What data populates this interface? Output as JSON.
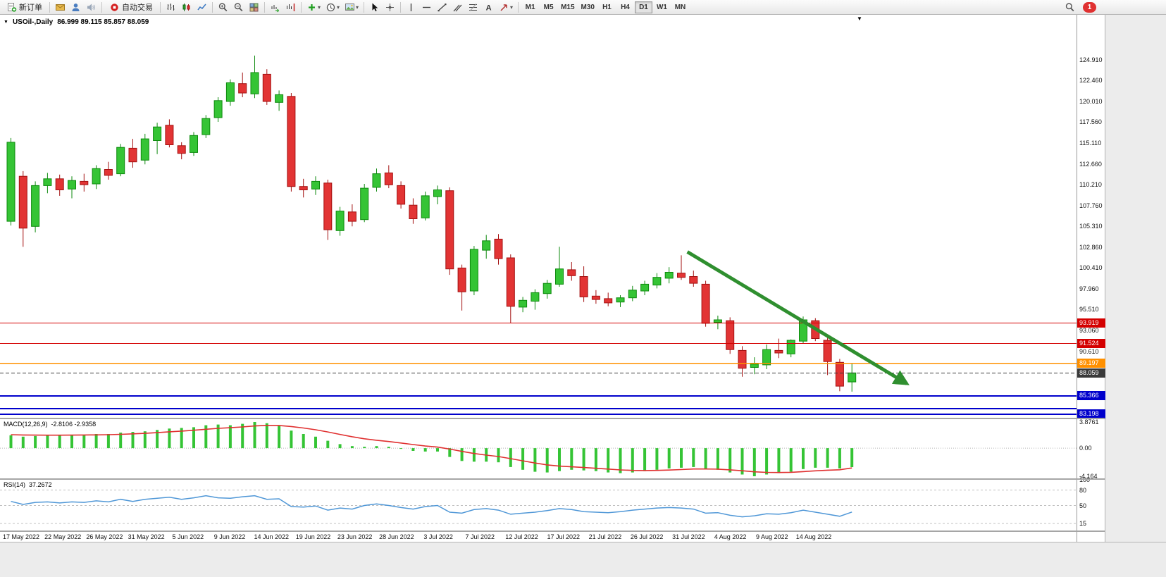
{
  "toolbar": {
    "new_order": "新订单",
    "auto_trading": "自动交易",
    "text_tool_glyph": "A",
    "timeframes": [
      "M1",
      "M5",
      "M15",
      "M30",
      "H1",
      "H4",
      "D1",
      "W1",
      "MN"
    ],
    "active_timeframe": "D1",
    "notification_badge": "1"
  },
  "chart_header": {
    "collapse_arrow": "▼",
    "scroll_marker": "▼",
    "symbol_period": "USOil-,Daily",
    "ohlc": "86.999 89.115 85.857 88.059"
  },
  "chart_data": {
    "type": "candlestick",
    "symbol": "USOil",
    "period": "Daily",
    "last_ohlc": {
      "open": 86.999,
      "high": 89.115,
      "low": 85.857,
      "close": 88.059
    },
    "price_axis_labels": [
      "124.910",
      "122.460",
      "120.010",
      "117.560",
      "115.110",
      "112.660",
      "110.210",
      "107.760",
      "105.310",
      "102.860",
      "100.410",
      "97.960",
      "95.510",
      "93.060",
      "90.610"
    ],
    "date_labels": [
      "17 May 2022",
      "22 May 2022",
      "26 May 2022",
      "31 May 2022",
      "5 Jun 2022",
      "9 Jun 2022",
      "14 Jun 2022",
      "19 Jun 2022",
      "23 Jun 2022",
      "28 Jun 2022",
      "3 Jul 2022",
      "7 Jul 2022",
      "12 Jul 2022",
      "17 Jul 2022",
      "21 Jul 2022",
      "26 Jul 2022",
      "31 Jul 2022",
      "4 Aug 2022",
      "9 Aug 2022",
      "14 Aug 2022"
    ],
    "candles": [
      [
        105.9,
        115.7,
        105.4,
        115.2
      ],
      [
        111.2,
        111.8,
        102.9,
        105.1
      ],
      [
        105.3,
        110.6,
        104.6,
        110.1
      ],
      [
        110.1,
        111.6,
        109.2,
        110.9
      ],
      [
        110.9,
        111.4,
        108.9,
        109.6
      ],
      [
        109.7,
        111.2,
        108.6,
        110.7
      ],
      [
        110.6,
        111.5,
        109.4,
        110.2
      ],
      [
        110.3,
        112.5,
        109.7,
        112.1
      ],
      [
        112.0,
        112.9,
        110.8,
        111.3
      ],
      [
        111.5,
        115.0,
        111.2,
        114.6
      ],
      [
        114.5,
        115.6,
        112.2,
        112.9
      ],
      [
        113.1,
        116.2,
        112.6,
        115.6
      ],
      [
        115.4,
        117.5,
        113.8,
        117.0
      ],
      [
        117.2,
        117.9,
        114.6,
        114.9
      ],
      [
        114.8,
        115.2,
        113.2,
        113.9
      ],
      [
        114.0,
        116.4,
        113.6,
        116.0
      ],
      [
        116.1,
        118.4,
        115.7,
        118.0
      ],
      [
        118.1,
        120.5,
        117.6,
        120.1
      ],
      [
        120.0,
        122.6,
        119.5,
        122.2
      ],
      [
        122.1,
        123.4,
        120.5,
        121.0
      ],
      [
        120.9,
        125.4,
        120.4,
        123.4
      ],
      [
        123.2,
        123.8,
        119.6,
        120.0
      ],
      [
        119.9,
        121.3,
        118.9,
        120.8
      ],
      [
        120.6,
        121.0,
        109.4,
        110.0
      ],
      [
        110.0,
        110.9,
        108.7,
        109.6
      ],
      [
        109.7,
        111.2,
        109.0,
        110.6
      ],
      [
        110.4,
        110.8,
        103.7,
        104.9
      ],
      [
        104.8,
        107.6,
        104.2,
        107.1
      ],
      [
        107.0,
        107.9,
        105.3,
        105.9
      ],
      [
        106.1,
        110.3,
        105.8,
        109.8
      ],
      [
        109.9,
        112.1,
        109.4,
        111.5
      ],
      [
        111.6,
        112.5,
        109.8,
        110.2
      ],
      [
        110.1,
        110.6,
        107.4,
        107.9
      ],
      [
        107.8,
        108.6,
        105.6,
        106.2
      ],
      [
        106.3,
        109.4,
        106.0,
        108.9
      ],
      [
        108.8,
        110.1,
        107.9,
        109.6
      ],
      [
        109.5,
        109.9,
        99.6,
        100.3
      ],
      [
        100.4,
        100.8,
        95.4,
        97.6
      ],
      [
        97.7,
        103.0,
        97.2,
        102.6
      ],
      [
        102.5,
        104.3,
        101.5,
        103.6
      ],
      [
        103.8,
        104.4,
        100.8,
        101.5
      ],
      [
        101.6,
        102.0,
        93.9,
        95.9
      ],
      [
        95.8,
        97.0,
        95.2,
        96.6
      ],
      [
        96.5,
        97.9,
        95.5,
        97.5
      ],
      [
        97.4,
        99.0,
        96.8,
        98.6
      ],
      [
        98.5,
        102.9,
        98.2,
        100.3
      ],
      [
        100.2,
        101.1,
        98.9,
        99.5
      ],
      [
        99.4,
        100.6,
        96.4,
        97.0
      ],
      [
        97.1,
        97.8,
        96.2,
        96.7
      ],
      [
        96.8,
        97.5,
        95.9,
        96.3
      ],
      [
        96.4,
        97.2,
        95.8,
        96.9
      ],
      [
        96.9,
        98.3,
        96.5,
        97.8
      ],
      [
        97.7,
        98.9,
        97.2,
        98.5
      ],
      [
        98.4,
        99.8,
        98.0,
        99.3
      ],
      [
        99.2,
        100.5,
        98.6,
        99.9
      ],
      [
        99.8,
        101.9,
        99.0,
        99.3
      ],
      [
        99.4,
        100.1,
        98.2,
        98.6
      ],
      [
        98.5,
        98.9,
        93.5,
        93.9
      ],
      [
        94.0,
        94.8,
        93.2,
        94.3
      ],
      [
        94.2,
        94.6,
        90.3,
        90.8
      ],
      [
        90.7,
        91.2,
        87.6,
        88.6
      ],
      [
        88.7,
        89.9,
        87.9,
        89.1
      ],
      [
        89.0,
        91.4,
        88.5,
        90.8
      ],
      [
        90.7,
        92.1,
        89.8,
        90.4
      ],
      [
        90.3,
        92.0,
        89.9,
        91.9
      ],
      [
        91.8,
        94.7,
        91.5,
        94.3
      ],
      [
        94.2,
        94.5,
        91.8,
        92.1
      ],
      [
        91.9,
        92.3,
        87.8,
        89.4
      ],
      [
        89.3,
        89.7,
        85.9,
        86.5
      ],
      [
        86.999,
        89.115,
        85.857,
        88.059
      ]
    ],
    "hlines": [
      {
        "price": 93.919,
        "label": "93.919",
        "color": "#d40000",
        "width": 1.2
      },
      {
        "price": 91.524,
        "label": "91.524",
        "color": "#d40000",
        "width": 1.2
      },
      {
        "price": 89.197,
        "label": "89.197",
        "color": "#ff9000",
        "width": 1.5
      },
      {
        "price": 88.059,
        "label": "88.059",
        "color": "#3a3a3a",
        "width": 1,
        "dashed": true
      },
      {
        "price": 85.366,
        "label": "85.366",
        "color": "#0000cc",
        "width": 2
      },
      {
        "price": 83.85,
        "label": "",
        "color": "#0000cc",
        "width": 2
      },
      {
        "price": 83.198,
        "label": "83.198",
        "color": "#0000cc",
        "width": 2
      }
    ],
    "trend_arrow": {
      "from_index": 56.5,
      "from_price": 102.3,
      "to_index": 74.5,
      "to_price": 86.8
    },
    "colors": {
      "bull": "#35c435",
      "bull_border": "#0e8a0e",
      "bear": "#e23434",
      "bear_border": "#a31111",
      "macd_hist": "#35c435",
      "macd_signal": "#e03030",
      "rsi_line": "#4f97d7",
      "arrow": "#2f8f2f",
      "level_red": "#d40000",
      "level_orange": "#ff9000",
      "level_blue": "#0000cc"
    },
    "macd": {
      "name": "MACD(12,26,9)",
      "values_text": "-2.8106 -2.9358",
      "axis_labels": [
        "3.8761",
        "0.00",
        "-4.164"
      ],
      "max": 3.8761,
      "min": -4.164,
      "histogram": [
        1.9,
        1.7,
        1.8,
        1.9,
        1.9,
        2.0,
        2.0,
        2.1,
        2.1,
        2.3,
        2.4,
        2.5,
        2.7,
        2.9,
        3.0,
        3.1,
        3.4,
        3.5,
        3.4,
        3.6,
        3.8761,
        3.7,
        3.3,
        2.6,
        2.1,
        1.7,
        1.1,
        0.6,
        0.3,
        0.2,
        0.3,
        0.2,
        -0.1,
        -0.4,
        -0.5,
        -0.5,
        -1.3,
        -1.9,
        -2.0,
        -2.0,
        -2.1,
        -2.8,
        -3.2,
        -3.5,
        -3.6,
        -3.4,
        -3.2,
        -3.3,
        -3.4,
        -3.6,
        -3.7,
        -3.6,
        -3.4,
        -3.2,
        -3.0,
        -2.9,
        -2.8,
        -3.1,
        -3.2,
        -3.6,
        -3.9,
        -4.164,
        -3.9,
        -3.7,
        -3.5,
        -3.1,
        -2.9,
        -2.9,
        -3.0,
        -2.8106
      ],
      "signal": [
        2.0,
        1.95,
        1.93,
        1.92,
        1.92,
        1.93,
        1.95,
        1.97,
        2.0,
        2.05,
        2.12,
        2.2,
        2.3,
        2.42,
        2.53,
        2.65,
        2.8,
        2.94,
        3.03,
        3.14,
        3.29,
        3.37,
        3.36,
        3.21,
        2.99,
        2.73,
        2.4,
        2.04,
        1.69,
        1.39,
        1.17,
        0.98,
        0.76,
        0.53,
        0.32,
        0.16,
        -0.13,
        -0.48,
        -0.79,
        -1.03,
        -1.24,
        -1.55,
        -1.88,
        -2.2,
        -2.48,
        -2.66,
        -2.77,
        -2.87,
        -2.98,
        -3.1,
        -3.22,
        -3.3,
        -3.32,
        -3.3,
        -3.24,
        -3.17,
        -3.09,
        -3.09,
        -3.11,
        -3.21,
        -3.35,
        -3.51,
        -3.59,
        -3.61,
        -3.58,
        -3.48,
        -3.36,
        -3.27,
        -3.2,
        -2.9358
      ]
    },
    "rsi": {
      "name": "RSI(14)",
      "value_text": "37.2672",
      "axis_labels": [
        {
          "v": 100,
          "t": "100"
        },
        {
          "v": 80,
          "t": "80"
        },
        {
          "v": 50,
          "t": "50"
        },
        {
          "v": 15,
          "t": "15"
        }
      ],
      "levels": [
        80,
        50,
        15
      ],
      "values": [
        58,
        52,
        56,
        57,
        55,
        57,
        56,
        59,
        57,
        62,
        58,
        62,
        64,
        66,
        62,
        65,
        69,
        65,
        64,
        67,
        69,
        62,
        63,
        48,
        47,
        49,
        41,
        45,
        43,
        50,
        53,
        50,
        46,
        43,
        48,
        50,
        37,
        35,
        42,
        44,
        41,
        33,
        35,
        37,
        40,
        44,
        42,
        38,
        37,
        36,
        38,
        41,
        43,
        45,
        46,
        45,
        43,
        35,
        36,
        31,
        28,
        30,
        34,
        33,
        36,
        41,
        37,
        33,
        29,
        37.2672
      ]
    }
  }
}
